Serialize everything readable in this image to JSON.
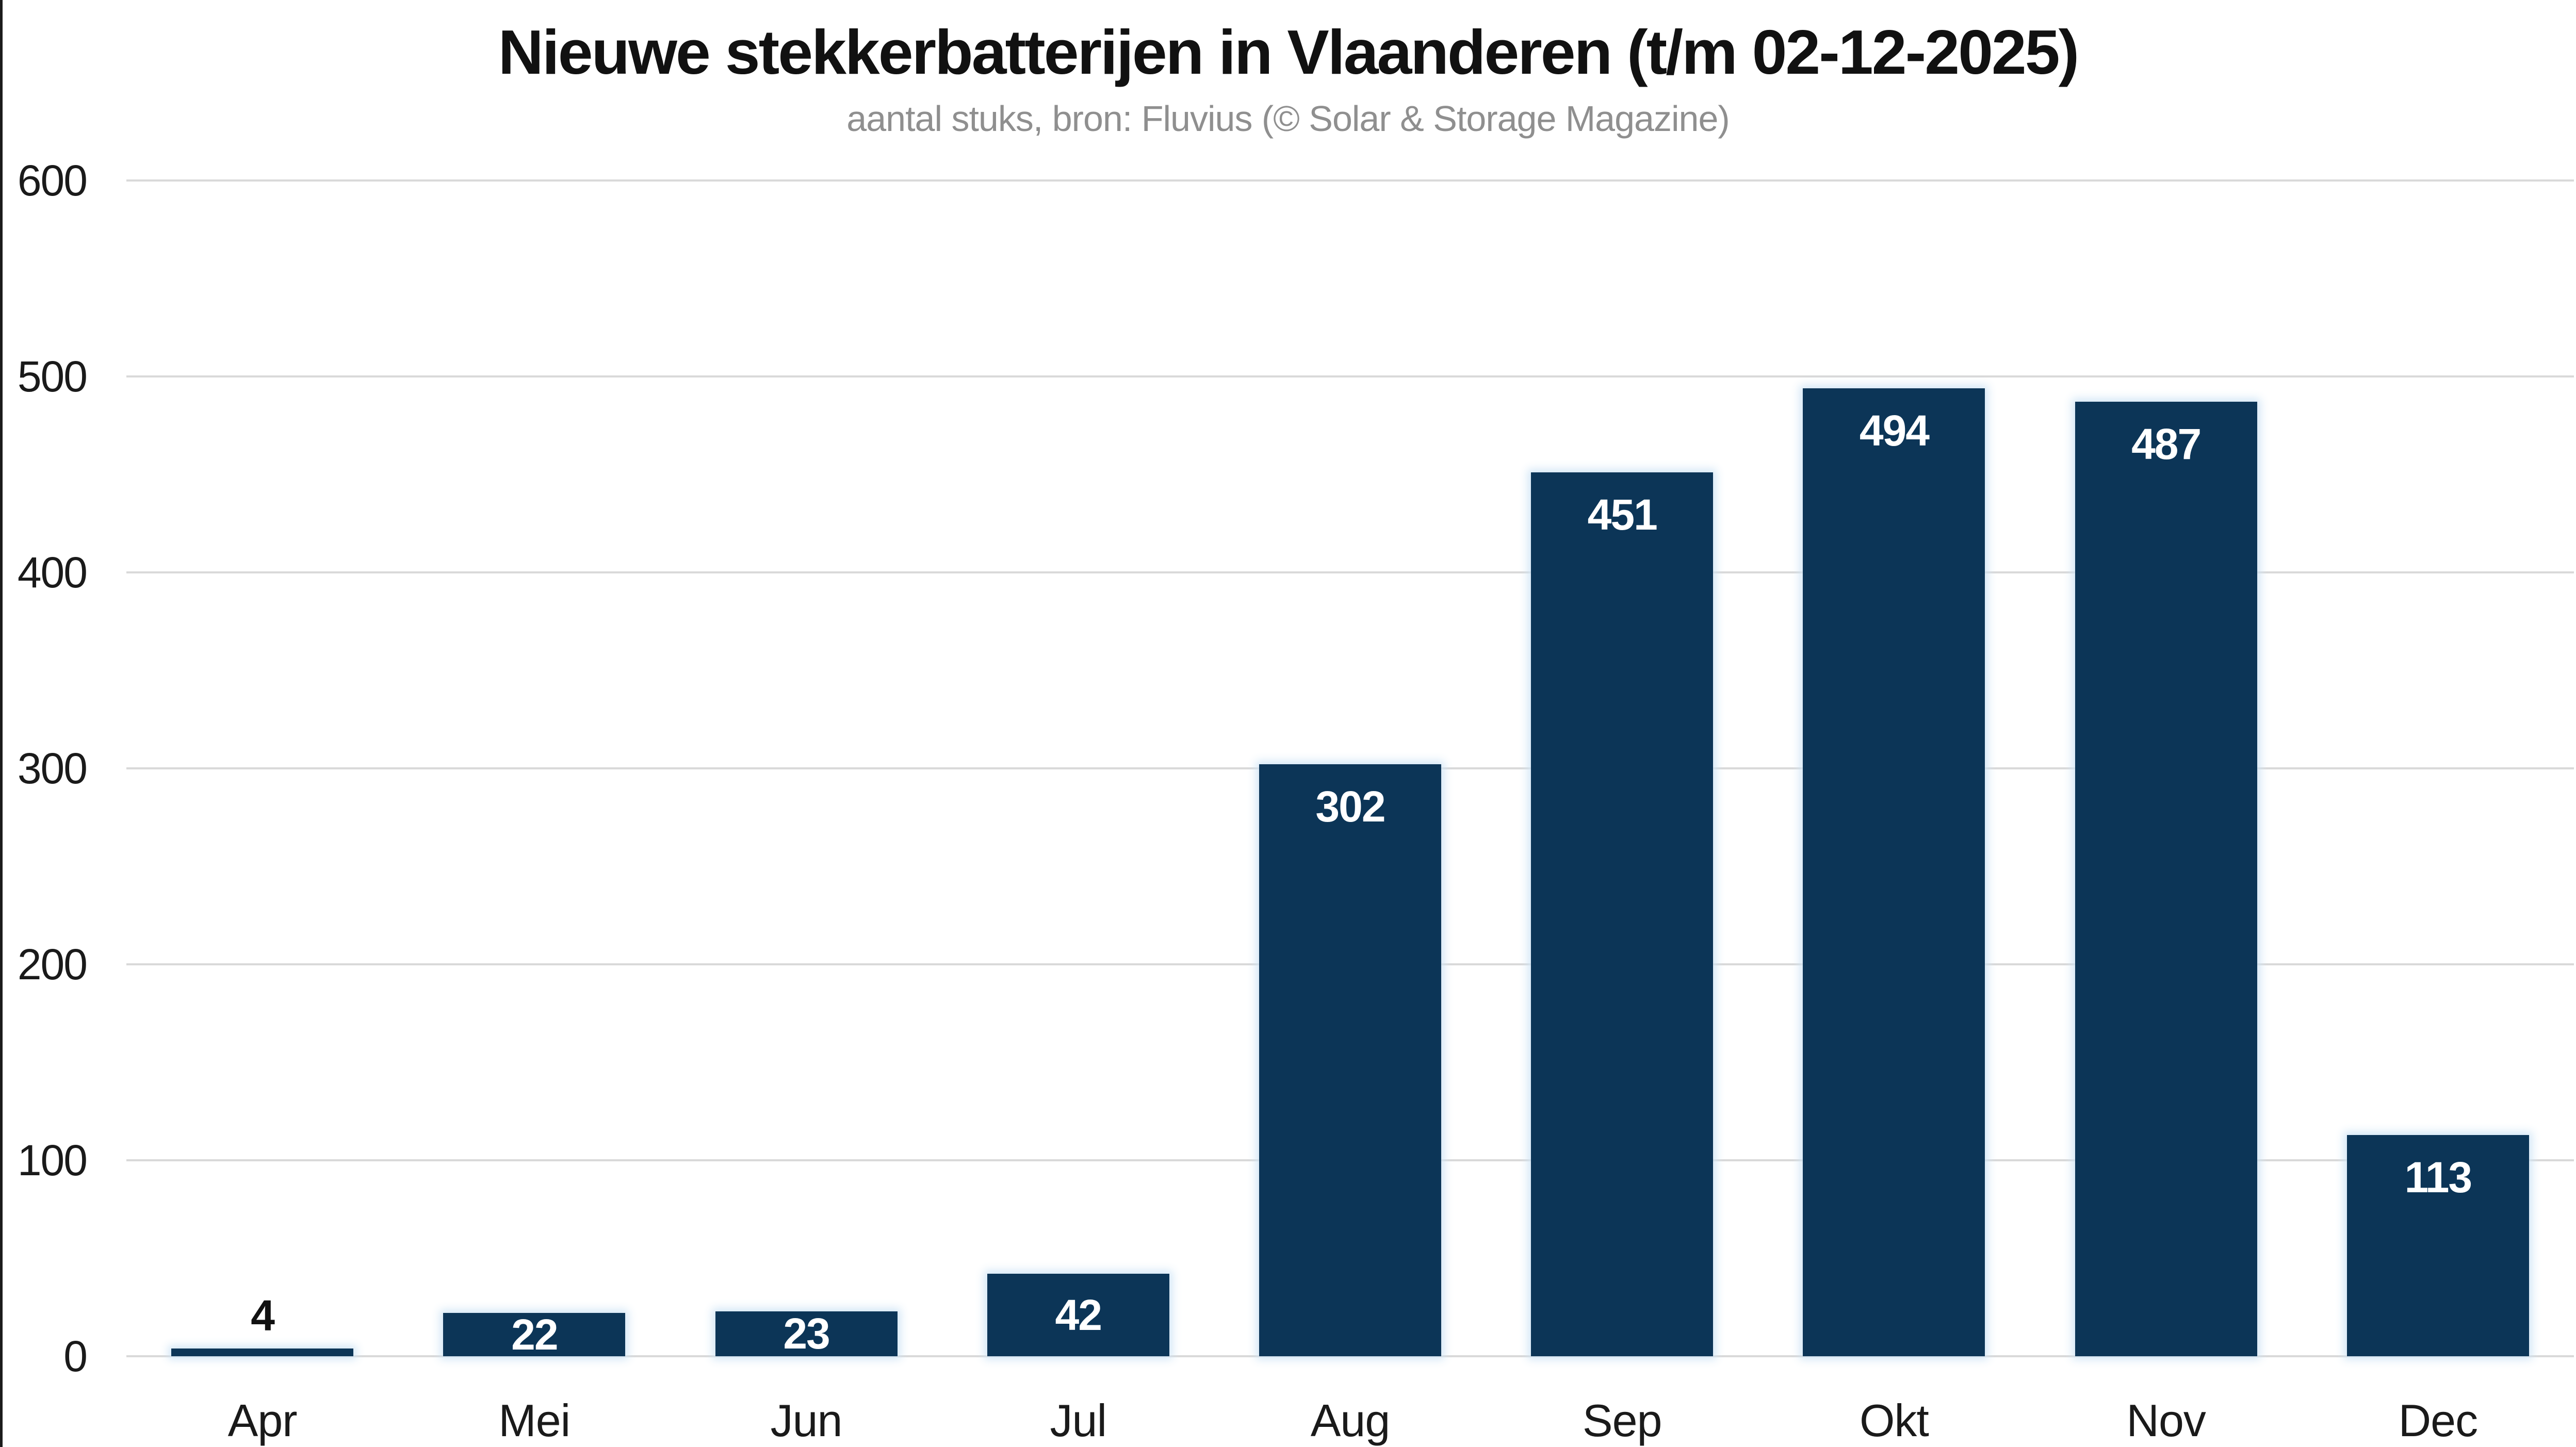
{
  "chart_data": {
    "type": "bar",
    "title": "Nieuwe stekkerbatterijen in Vlaanderen (t/m 02-12-2025)",
    "subtitle": "aantal stuks, bron: Fluvius (© Solar & Storage Magazine)",
    "categories": [
      "Apr",
      "Mei",
      "Jun",
      "Jul",
      "Aug",
      "Sep",
      "Okt",
      "Nov",
      "Dec"
    ],
    "values": [
      4,
      22,
      23,
      42,
      302,
      451,
      494,
      487,
      113
    ],
    "xlabel": "",
    "ylabel": "",
    "ylim": [
      0,
      600
    ],
    "yticks": [
      0,
      100,
      200,
      300,
      400,
      500,
      600
    ],
    "grid": "horizontal",
    "legend": "none",
    "colors": {
      "bar": "#0c3557",
      "bar_glow": "#d0e5f5",
      "gridline": "#d9d9d9",
      "title": "#111111",
      "subtitle": "#8f8f8f",
      "tick_text": "#1a1a1a",
      "value_label_inside": "#ffffff",
      "value_label_outside": "#111111",
      "left_border": "#1c1c1c"
    }
  }
}
